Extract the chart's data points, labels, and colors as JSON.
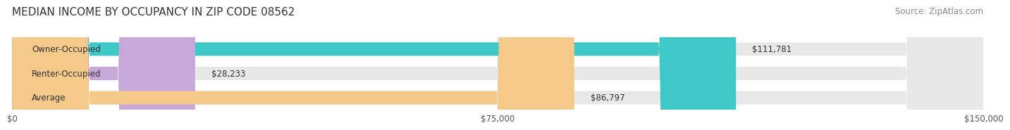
{
  "title": "MEDIAN INCOME BY OCCUPANCY IN ZIP CODE 08562",
  "source": "Source: ZipAtlas.com",
  "categories": [
    "Owner-Occupied",
    "Renter-Occupied",
    "Average"
  ],
  "values": [
    111781,
    28233,
    86797
  ],
  "bar_colors": [
    "#3ec8c8",
    "#c8a8d8",
    "#f5c98a"
  ],
  "bar_track_color": "#e8e8e8",
  "max_value": 150000,
  "xticks": [
    0,
    75000,
    150000
  ],
  "xtick_labels": [
    "$0",
    "$75,000",
    "$150,000"
  ],
  "value_labels": [
    "$111,781",
    "$28,233",
    "$86,797"
  ],
  "background_color": "#ffffff",
  "title_fontsize": 11,
  "source_fontsize": 8.5,
  "label_fontsize": 8.5,
  "bar_height": 0.55,
  "bar_label_color": "#333333"
}
